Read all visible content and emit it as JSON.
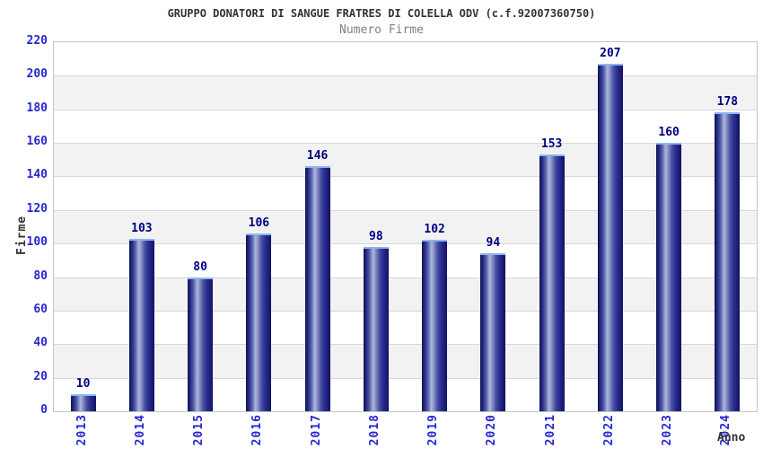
{
  "chart_data": {
    "type": "bar",
    "title": "GRUPPO DONATORI DI SANGUE FRATRES DI COLELLA ODV (c.f.92007360750)",
    "subtitle": "Numero Firme",
    "xlabel": "Anno",
    "ylabel": "Firme",
    "categories": [
      "2013",
      "2014",
      "2015",
      "2016",
      "2017",
      "2018",
      "2019",
      "2020",
      "2021",
      "2022",
      "2023",
      "2024"
    ],
    "values": [
      10,
      103,
      80,
      106,
      146,
      98,
      102,
      94,
      153,
      207,
      160,
      178
    ],
    "ylim": [
      0,
      220
    ],
    "ytick_step": 20,
    "yticks": [
      0,
      20,
      40,
      60,
      80,
      100,
      120,
      140,
      160,
      180,
      200,
      220
    ],
    "grid": true,
    "legend_position": "none",
    "value_labels_shown": true,
    "colors": {
      "bar_dark": "#1a1a78",
      "bar_highlight": "#aeb7dd",
      "bar_cap": "#8ab7ea",
      "axis_tick_label": "#2626d0",
      "value_label": "#000080",
      "title": "#333333",
      "subtitle": "#808080",
      "band_fill": "#f2f2f2",
      "gridline": "#d9d9d9",
      "plot_border": "#c6c6c6"
    }
  }
}
